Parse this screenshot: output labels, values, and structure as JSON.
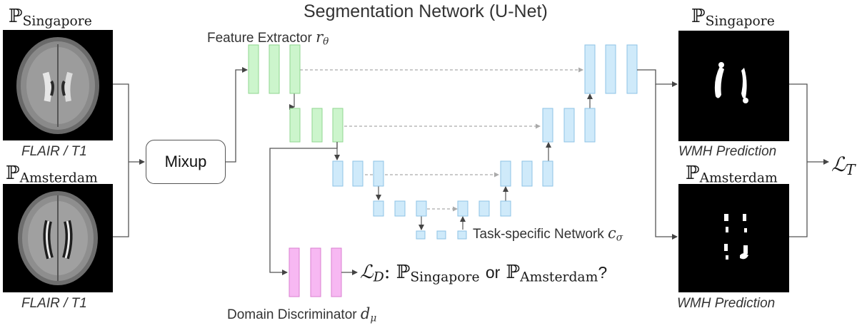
{
  "title": "Segmentation Network (U-Net)",
  "inputs": {
    "top_domain_symbol": "ℙ",
    "top_domain_sub": "Singapore",
    "top_caption": "FLAIR / T1",
    "bottom_domain_symbol": "ℙ",
    "bottom_domain_sub": "Amsterdam",
    "bottom_caption": "FLAIR / T1"
  },
  "mixup_label": "Mixup",
  "feature_extractor": {
    "label": "Feature Extractor",
    "symbol": "r",
    "sub": "θ"
  },
  "task_network": {
    "label": "Task-specific Network",
    "symbol": "c",
    "sub": "σ"
  },
  "discriminator": {
    "label": "Domain Discriminator",
    "symbol": "d",
    "sub": "μ"
  },
  "loss_d": {
    "symbol": "ℒ",
    "sub": "D",
    "colon": ":",
    "p1": "ℙ",
    "p1_sub": "Singapore",
    "or": "or",
    "p2": "ℙ",
    "p2_sub": "Amsterdam",
    "q": "?"
  },
  "outputs": {
    "top_domain_symbol": "ℙ",
    "top_domain_sub": "Singapore",
    "top_caption": "WMH Prediction",
    "bottom_domain_symbol": "ℙ",
    "bottom_domain_sub": "Amsterdam",
    "bottom_caption": "WMH Prediction"
  },
  "loss_t": {
    "symbol": "ℒ",
    "sub": "T"
  },
  "colors": {
    "encoder": "#ccf5cc",
    "encoder_border": "#8fd68f",
    "decoder": "#cfeafa",
    "decoder_border": "#8cc3e6",
    "discriminator": "#f7b8f2",
    "discriminator_border": "#d97fd0"
  }
}
